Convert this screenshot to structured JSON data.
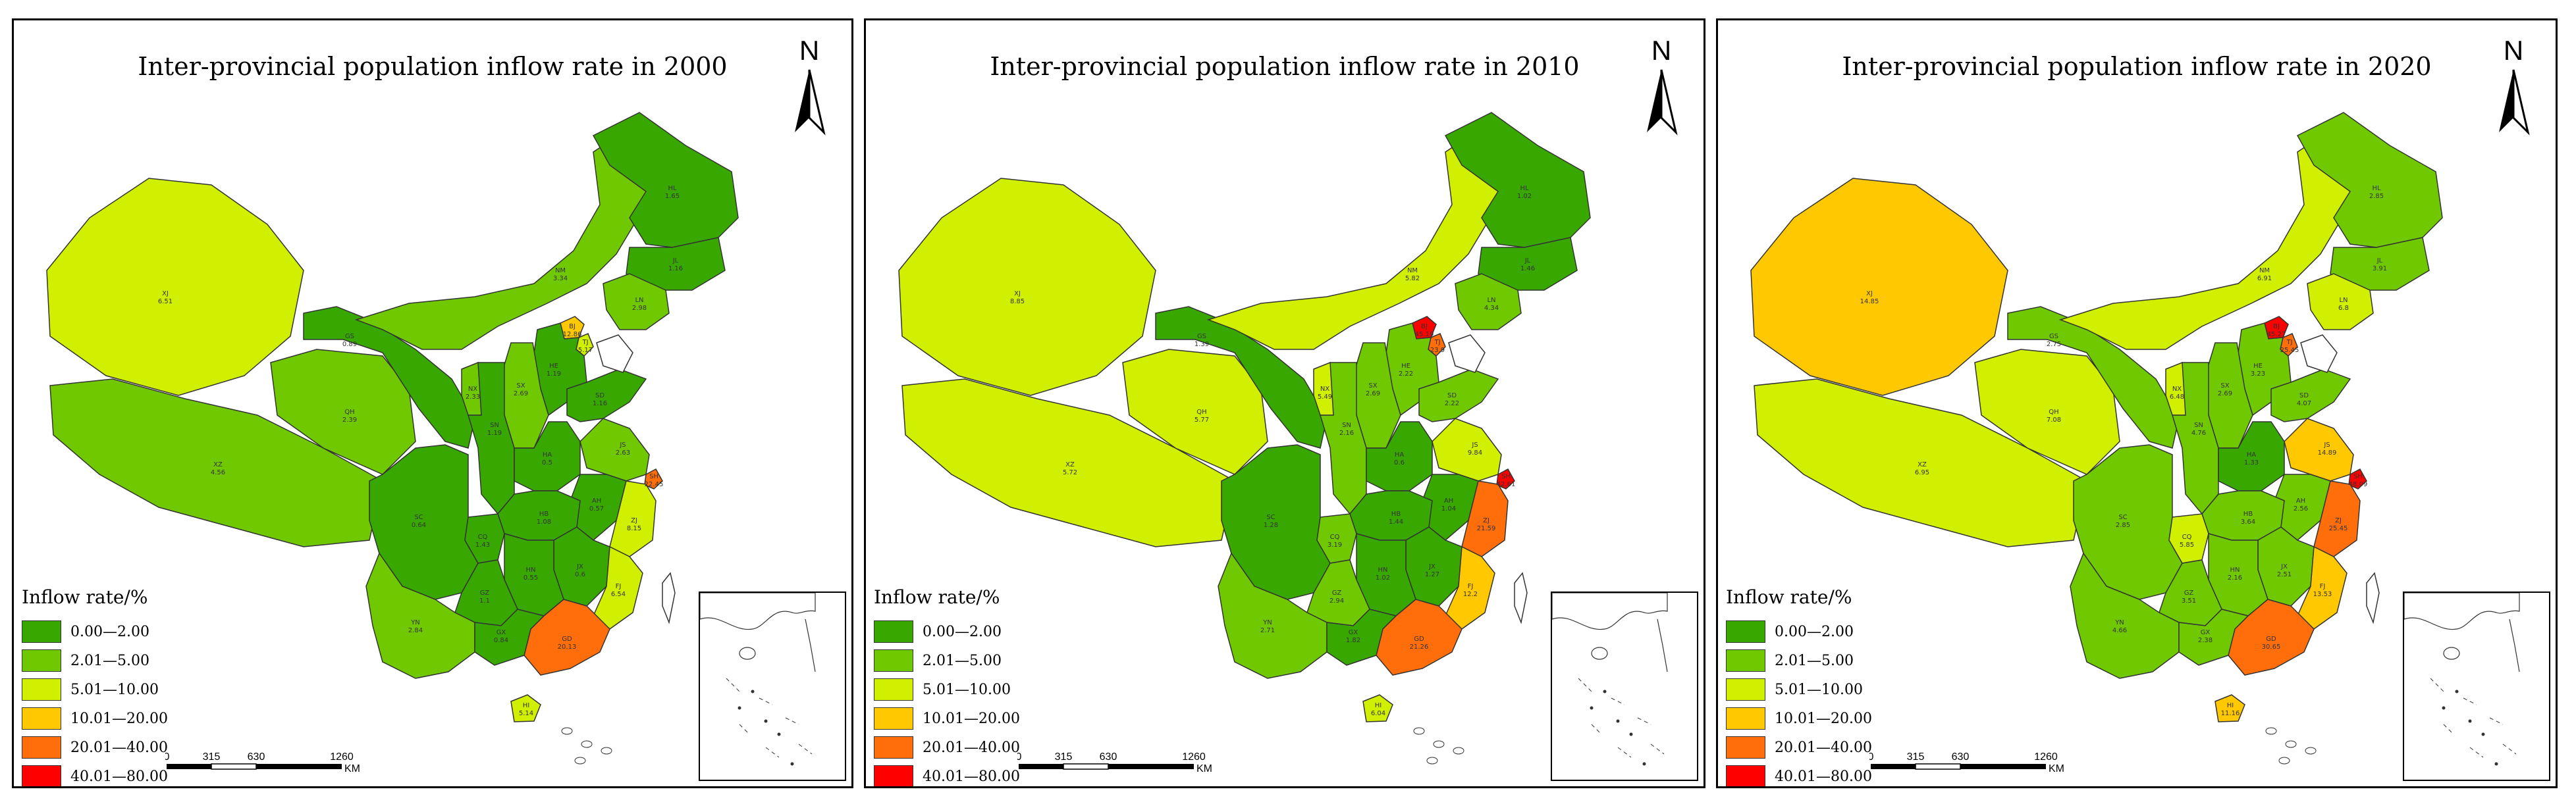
{
  "panels": [
    {
      "title": "Inter-provincial population inflow rate in 2000",
      "provinces": [
        {
          "abbr": "XJ",
          "value": "6.51",
          "cls": 3
        },
        {
          "abbr": "XZ",
          "value": "4.56",
          "cls": 2
        },
        {
          "abbr": "QH",
          "value": "2.39",
          "cls": 2
        },
        {
          "abbr": "GS",
          "value": "0.89",
          "cls": 1
        },
        {
          "abbr": "NM",
          "value": "3.34",
          "cls": 2
        },
        {
          "abbr": "HL",
          "value": "1.65",
          "cls": 1
        },
        {
          "abbr": "JL",
          "value": "1.16",
          "cls": 1
        },
        {
          "abbr": "LN",
          "value": "2.98",
          "cls": 2
        },
        {
          "abbr": "BJ",
          "value": "12.86",
          "cls": 4
        },
        {
          "abbr": "TJ",
          "value": "5.17",
          "cls": 3
        },
        {
          "abbr": "HE",
          "value": "1.19",
          "cls": 1
        },
        {
          "abbr": "SX",
          "value": "2.69",
          "cls": 2
        },
        {
          "abbr": "NX",
          "value": "2.33",
          "cls": 2
        },
        {
          "abbr": "SN",
          "value": "1.19",
          "cls": 1
        },
        {
          "abbr": "HA",
          "value": "0.5",
          "cls": 1
        },
        {
          "abbr": "SD",
          "value": "1.16",
          "cls": 1
        },
        {
          "abbr": "JS",
          "value": "2.63",
          "cls": 2
        },
        {
          "abbr": "SH",
          "value": "22.45",
          "cls": 5
        },
        {
          "abbr": "AH",
          "value": "0.57",
          "cls": 1
        },
        {
          "abbr": "HB",
          "value": "1.08",
          "cls": 1
        },
        {
          "abbr": "SC",
          "value": "0.64",
          "cls": 1
        },
        {
          "abbr": "CQ",
          "value": "1.43",
          "cls": 1
        },
        {
          "abbr": "ZJ",
          "value": "8.15",
          "cls": 3
        },
        {
          "abbr": "JX",
          "value": "0.6",
          "cls": 1
        },
        {
          "abbr": "HN",
          "value": "0.55",
          "cls": 1
        },
        {
          "abbr": "GZ",
          "value": "1.1",
          "cls": 1
        },
        {
          "abbr": "YN",
          "value": "2.84",
          "cls": 2
        },
        {
          "abbr": "FJ",
          "value": "6.54",
          "cls": 3
        },
        {
          "abbr": "GD",
          "value": "20.13",
          "cls": 5
        },
        {
          "abbr": "GX",
          "value": "0.84",
          "cls": 1
        },
        {
          "abbr": "HI",
          "value": "5.14",
          "cls": 3
        }
      ]
    },
    {
      "title": "Inter-provincial population inflow rate in 2010",
      "provinces": [
        {
          "abbr": "XJ",
          "value": "8.85",
          "cls": 3
        },
        {
          "abbr": "XZ",
          "value": "5.72",
          "cls": 3
        },
        {
          "abbr": "QH",
          "value": "5.77",
          "cls": 3
        },
        {
          "abbr": "GS",
          "value": "1.39",
          "cls": 1
        },
        {
          "abbr": "NM",
          "value": "5.82",
          "cls": 3
        },
        {
          "abbr": "HL",
          "value": "1.02",
          "cls": 1
        },
        {
          "abbr": "JL",
          "value": "1.46",
          "cls": 1
        },
        {
          "abbr": "LN",
          "value": "4.34",
          "cls": 2
        },
        {
          "abbr": "BJ",
          "value": "45.19",
          "cls": 6
        },
        {
          "abbr": "TJ",
          "value": "23.9",
          "cls": 5
        },
        {
          "abbr": "HE",
          "value": "2.22",
          "cls": 2
        },
        {
          "abbr": "SX",
          "value": "2.69",
          "cls": 2
        },
        {
          "abbr": "NX",
          "value": "5.49",
          "cls": 3
        },
        {
          "abbr": "SN",
          "value": "2.16",
          "cls": 2
        },
        {
          "abbr": "HA",
          "value": "0.6",
          "cls": 1
        },
        {
          "abbr": "SD",
          "value": "2.22",
          "cls": 2
        },
        {
          "abbr": "JS",
          "value": "9.84",
          "cls": 3
        },
        {
          "abbr": "SH",
          "value": "42.61",
          "cls": 6
        },
        {
          "abbr": "AH",
          "value": "1.04",
          "cls": 1
        },
        {
          "abbr": "HB",
          "value": "1.44",
          "cls": 1
        },
        {
          "abbr": "SC",
          "value": "1.28",
          "cls": 1
        },
        {
          "abbr": "CQ",
          "value": "3.19",
          "cls": 2
        },
        {
          "abbr": "ZJ",
          "value": "21.59",
          "cls": 5
        },
        {
          "abbr": "JX",
          "value": "1.27",
          "cls": 1
        },
        {
          "abbr": "HN",
          "value": "1.02",
          "cls": 1
        },
        {
          "abbr": "GZ",
          "value": "2.94",
          "cls": 2
        },
        {
          "abbr": "YN",
          "value": "2.71",
          "cls": 2
        },
        {
          "abbr": "FJ",
          "value": "12.2",
          "cls": 4
        },
        {
          "abbr": "GD",
          "value": "21.26",
          "cls": 5
        },
        {
          "abbr": "GX",
          "value": "1.82",
          "cls": 1
        },
        {
          "abbr": "HI",
          "value": "6.04",
          "cls": 3
        }
      ]
    },
    {
      "title": "Inter-provincial population inflow rate in 2020",
      "provinces": [
        {
          "abbr": "XJ",
          "value": "14.85",
          "cls": 4
        },
        {
          "abbr": "XZ",
          "value": "6.95",
          "cls": 3
        },
        {
          "abbr": "QH",
          "value": "7.08",
          "cls": 3
        },
        {
          "abbr": "GS",
          "value": "2.75",
          "cls": 2
        },
        {
          "abbr": "NM",
          "value": "6.91",
          "cls": 3
        },
        {
          "abbr": "HL",
          "value": "2.85",
          "cls": 2
        },
        {
          "abbr": "JL",
          "value": "3.91",
          "cls": 2
        },
        {
          "abbr": "LN",
          "value": "6.8",
          "cls": 3
        },
        {
          "abbr": "BJ",
          "value": "45.27",
          "cls": 6
        },
        {
          "abbr": "TJ",
          "value": "25.45",
          "cls": 5
        },
        {
          "abbr": "HE",
          "value": "3.23",
          "cls": 2
        },
        {
          "abbr": "SX",
          "value": "2.69",
          "cls": 2
        },
        {
          "abbr": "NX",
          "value": "6.48",
          "cls": 3
        },
        {
          "abbr": "SN",
          "value": "4.76",
          "cls": 2
        },
        {
          "abbr": "HA",
          "value": "1.33",
          "cls": 1
        },
        {
          "abbr": "SD",
          "value": "4.07",
          "cls": 2
        },
        {
          "abbr": "JS",
          "value": "14.89",
          "cls": 4
        },
        {
          "abbr": "SH",
          "value": "48.09",
          "cls": 6
        },
        {
          "abbr": "AH",
          "value": "2.56",
          "cls": 2
        },
        {
          "abbr": "HB",
          "value": "3.64",
          "cls": 2
        },
        {
          "abbr": "SC",
          "value": "2.85",
          "cls": 2
        },
        {
          "abbr": "CQ",
          "value": "5.85",
          "cls": 3
        },
        {
          "abbr": "ZJ",
          "value": "25.45",
          "cls": 5
        },
        {
          "abbr": "JX",
          "value": "2.51",
          "cls": 2
        },
        {
          "abbr": "HN",
          "value": "2.16",
          "cls": 2
        },
        {
          "abbr": "GZ",
          "value": "3.51",
          "cls": 2
        },
        {
          "abbr": "YN",
          "value": "4.66",
          "cls": 2
        },
        {
          "abbr": "FJ",
          "value": "13.53",
          "cls": 4
        },
        {
          "abbr": "GD",
          "value": "30.65",
          "cls": 5
        },
        {
          "abbr": "GX",
          "value": "2.38",
          "cls": 2
        },
        {
          "abbr": "HI",
          "value": "11.16",
          "cls": 4
        }
      ]
    }
  ],
  "legend": {
    "title": "Inflow rate/%",
    "classes": [
      {
        "label": "0.00—2.00",
        "color": "#38a800"
      },
      {
        "label": "2.01—5.00",
        "color": "#70c800"
      },
      {
        "label": "5.01—10.00",
        "color": "#d1ef00"
      },
      {
        "label": "10.01—20.00",
        "color": "#ffc800"
      },
      {
        "label": "20.01—40.00",
        "color": "#ff6e0a"
      },
      {
        "label": "40.01—80.00",
        "color": "#ff0000"
      }
    ]
  },
  "north_label": "N",
  "scalebar": {
    "ticks": [
      "0",
      "315",
      "630",
      "1260"
    ],
    "unit": "KM"
  },
  "colors": {
    "border": "#000000",
    "province_outline": "#333333"
  }
}
